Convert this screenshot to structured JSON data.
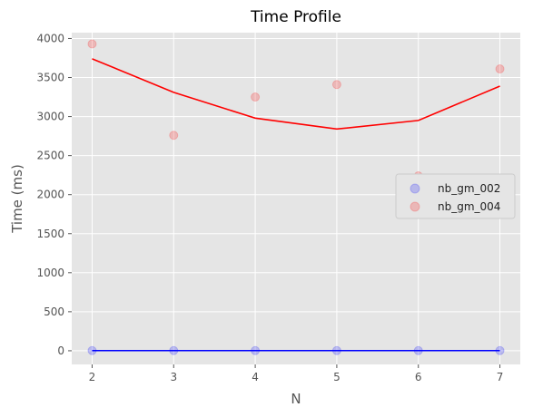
{
  "chart_data": {
    "type": "scatter",
    "title": "Time Profile",
    "xlabel": "N",
    "ylabel": "Time (ms)",
    "x_ticks": [
      "2",
      "3",
      "4",
      "5",
      "6",
      "7"
    ],
    "y_ticks": [
      "0",
      "500",
      "1000",
      "1500",
      "2000",
      "2500",
      "3000",
      "3500",
      "4000"
    ],
    "xlim": [
      1.75,
      7.25
    ],
    "ylim": [
      -175,
      4075
    ],
    "grid": true,
    "legend_position": "center-right",
    "series": [
      {
        "name": "nb_gm_002",
        "color": "#0000ff",
        "x": [
          2,
          3,
          4,
          5,
          6,
          7
        ],
        "y": [
          2,
          2,
          2,
          2,
          2,
          2
        ],
        "fit_line": [
          2,
          2,
          2,
          2,
          2,
          2
        ]
      },
      {
        "name": "nb_gm_004",
        "color": "#ff0000",
        "x": [
          2,
          3,
          4,
          5,
          6,
          7
        ],
        "y": [
          3930,
          2760,
          3250,
          3410,
          2240,
          3610
        ],
        "fit_line": [
          3740,
          3310,
          2980,
          2840,
          2950,
          3390
        ]
      }
    ],
    "background": "#e5e5e5"
  }
}
